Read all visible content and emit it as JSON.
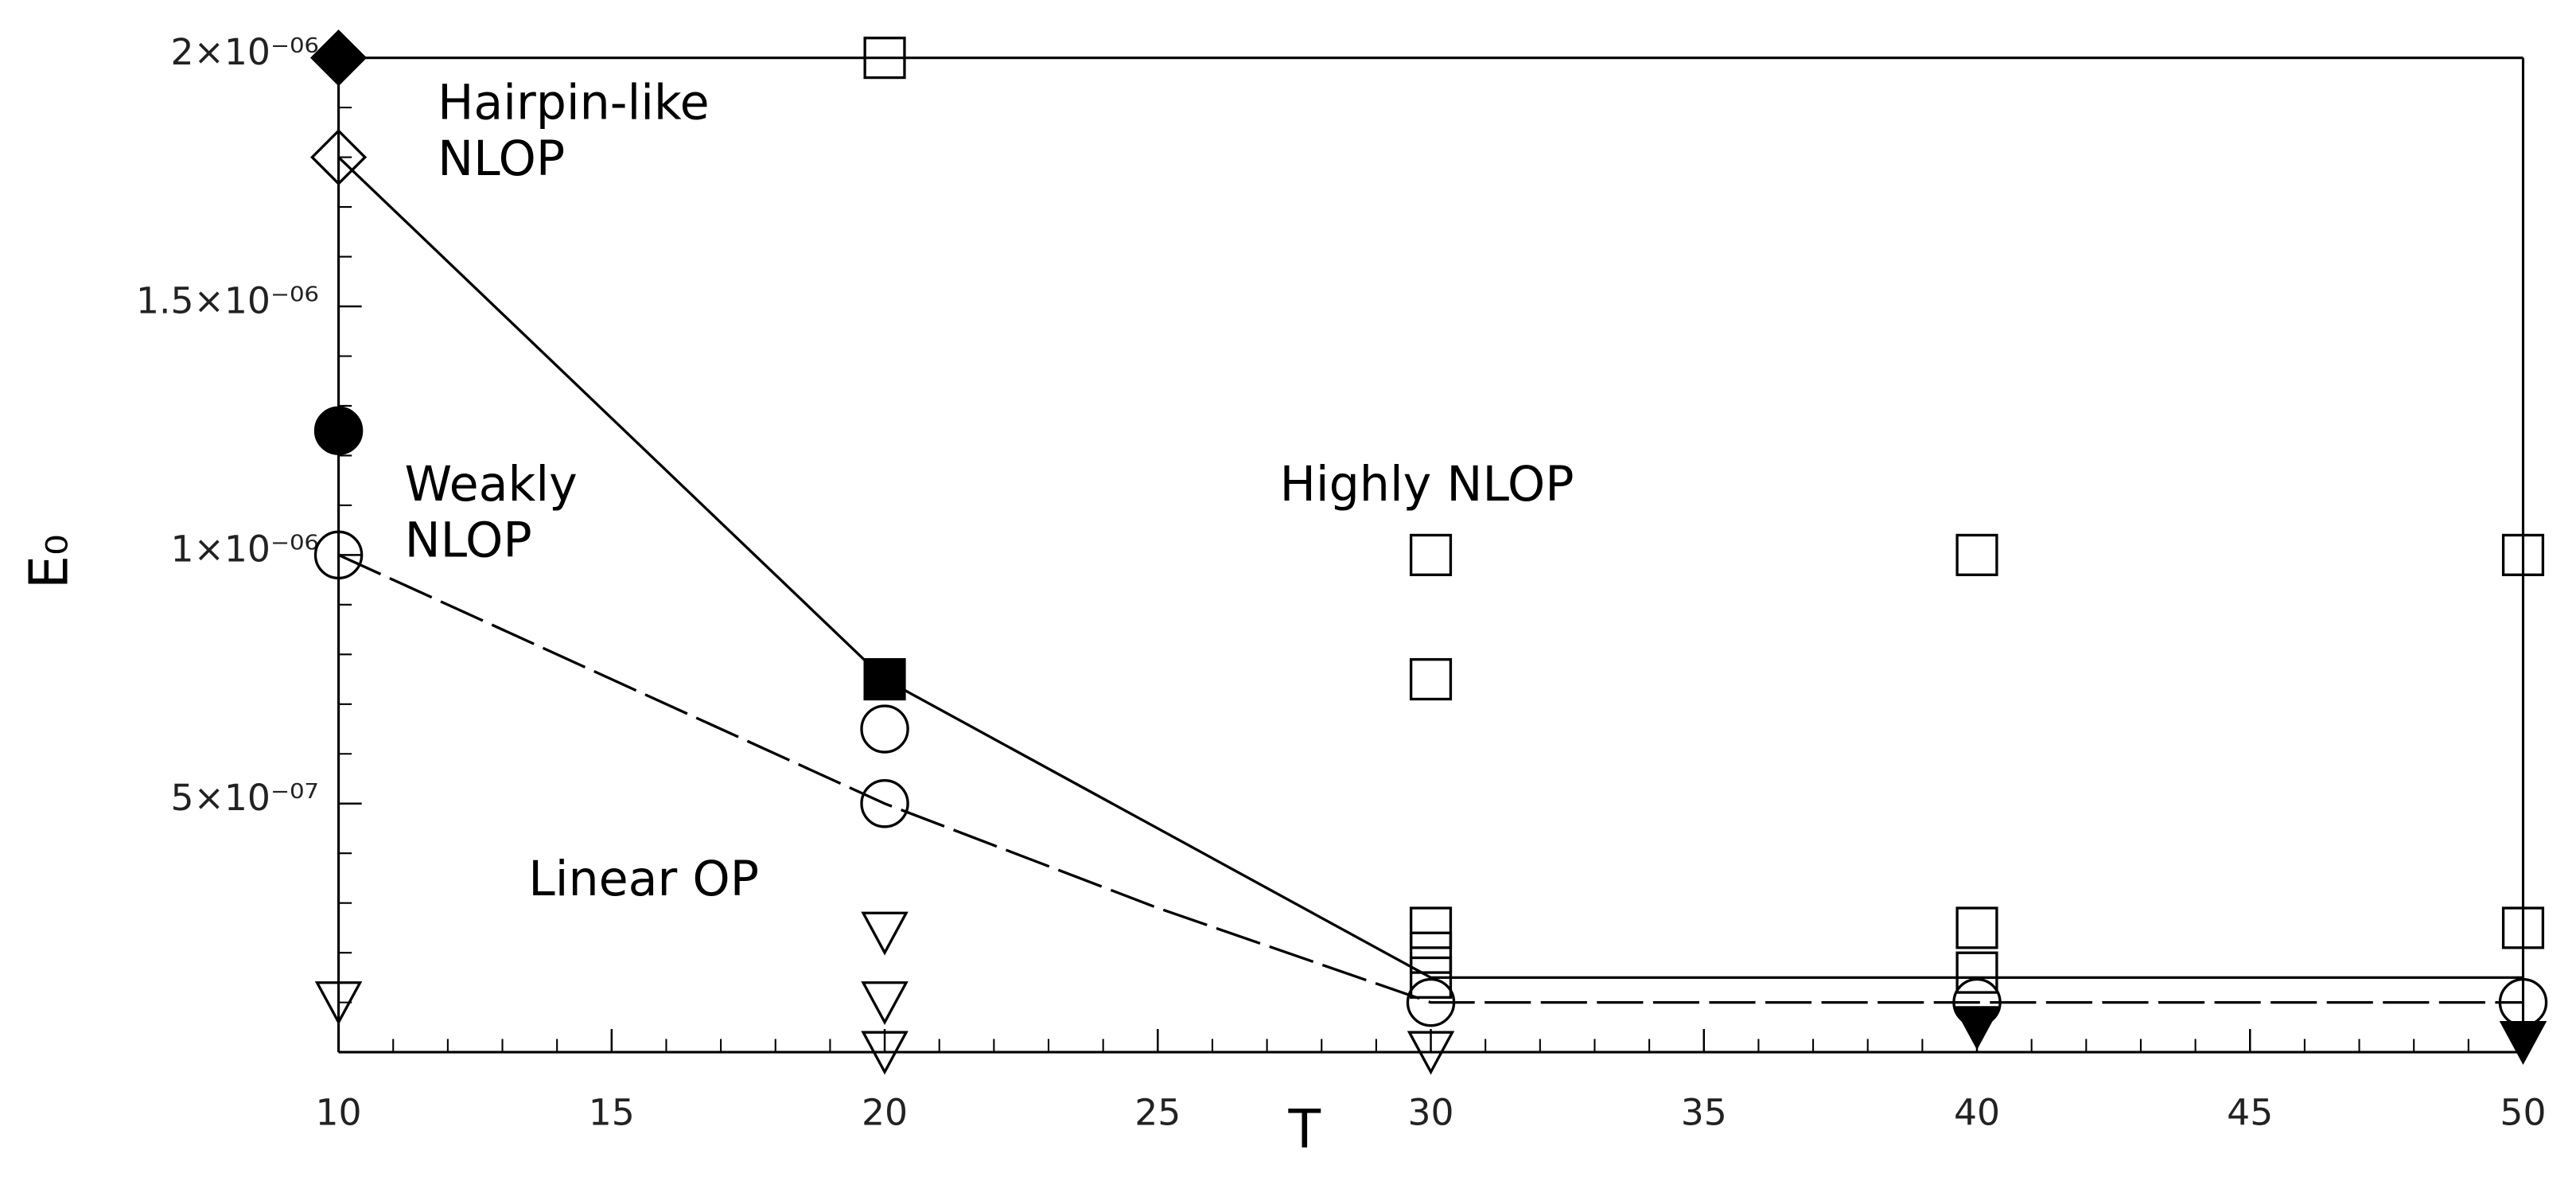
{
  "chart_data": {
    "type": "scatter",
    "x_label": "T",
    "y_label": "E₀",
    "xlim": [
      10,
      50
    ],
    "ylim": [
      0,
      2e-06
    ],
    "xticks": [
      10,
      15,
      20,
      25,
      30,
      35,
      40,
      45,
      50
    ],
    "yticks": [
      {
        "value": 5e-07,
        "label": "5×10⁻⁰⁷"
      },
      {
        "value": 1e-06,
        "label": "1×10⁻⁰⁶"
      },
      {
        "value": 1.5e-06,
        "label": "1.5×10⁻⁰⁶"
      },
      {
        "value": 2e-06,
        "label": "2×10⁻⁰⁶"
      }
    ],
    "box": true,
    "annotations": [
      {
        "lines": [
          "Hairpin-like",
          "NLOP"
        ]
      },
      {
        "lines": [
          "Weakly",
          "NLOP"
        ]
      },
      {
        "lines": [
          "Highly NLOP"
        ]
      },
      {
        "lines": [
          "Linear OP"
        ]
      }
    ],
    "series": [
      {
        "marker": "diamond",
        "filled": true,
        "color": "#000000",
        "x": [
          10
        ],
        "values": [
          2e-06
        ]
      },
      {
        "marker": "diamond",
        "filled": false,
        "color": "#000000",
        "x": [
          10
        ],
        "values": [
          1.8e-06
        ]
      },
      {
        "marker": "circle",
        "filled": true,
        "color": "#000000",
        "x": [
          10
        ],
        "values": [
          1.25e-06
        ]
      },
      {
        "marker": "circle",
        "filled": false,
        "color": "#000000",
        "x": [
          10,
          20,
          20,
          30,
          40,
          50
        ],
        "values": [
          1e-06,
          6.5e-07,
          5e-07,
          1e-07,
          1e-07,
          1e-07
        ]
      },
      {
        "marker": "triangle-down",
        "filled": false,
        "color": "#000000",
        "x": [
          10,
          20,
          20,
          20,
          30
        ],
        "values": [
          1e-07,
          2.4e-07,
          1e-07,
          0,
          0
        ]
      },
      {
        "marker": "triangle-down",
        "filled": true,
        "color": "#000000",
        "x": [
          40,
          50
        ],
        "values": [
          5e-08,
          2e-08
        ]
      },
      {
        "marker": "square",
        "filled": false,
        "color": "#000000",
        "x": [
          20,
          30,
          30,
          30,
          30,
          30,
          40,
          40,
          40,
          50,
          50
        ],
        "values": [
          2e-06,
          1e-06,
          7.5e-07,
          2.5e-07,
          2e-07,
          1.5e-07,
          1e-06,
          2.5e-07,
          1.6e-07,
          1e-06,
          2.5e-07
        ]
      },
      {
        "marker": "square",
        "filled": true,
        "color": "#000000",
        "x": [
          20
        ],
        "values": [
          7.5e-07
        ]
      },
      {
        "marker": "none",
        "line": "solid",
        "color": "#000000",
        "x": [
          10,
          20,
          25,
          30,
          50
        ],
        "values": [
          1.8e-06,
          7.5e-07,
          4.5e-07,
          1.5e-07,
          1.5e-07
        ]
      },
      {
        "marker": "none",
        "line": "dashed",
        "color": "#000000",
        "x": [
          10,
          20,
          25,
          30,
          50
        ],
        "values": [
          1e-06,
          5e-07,
          2.9e-07,
          1e-07,
          1e-07
        ]
      }
    ]
  }
}
